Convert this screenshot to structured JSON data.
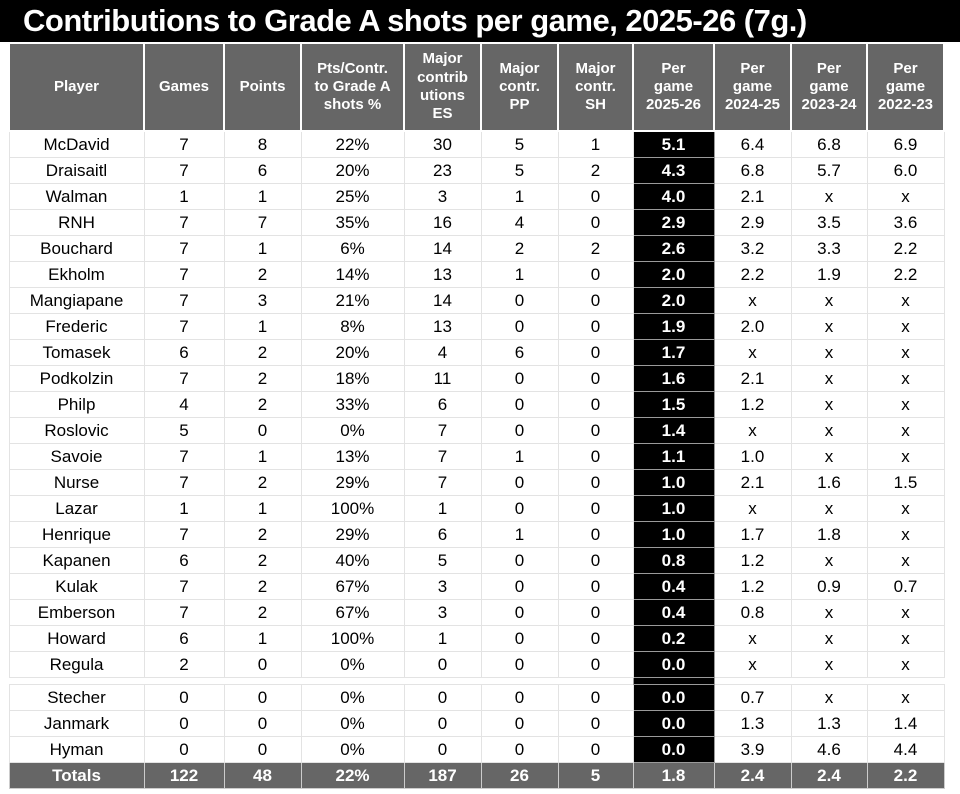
{
  "title": "Contributions to Grade A shots per game, 2025-26 (7g.)",
  "chart_data": {
    "type": "table",
    "title": "Contributions to Grade A shots per game, 2025-26 (7g.)",
    "highlight_col_index": 7,
    "highlight_column": "Per game 2025-26",
    "spacer_after_player": "Regula",
    "columns": [
      {
        "label": "Player",
        "lines": [
          "Player"
        ]
      },
      {
        "label": "Games",
        "lines": [
          "Games"
        ]
      },
      {
        "label": "Points",
        "lines": [
          "Points"
        ]
      },
      {
        "label": "Pts/Contr. to Grade A shots %",
        "lines": [
          "Pts/Contr.",
          "to Grade A",
          "shots %"
        ]
      },
      {
        "label": "Major contributions ES",
        "lines": [
          "Major",
          "contrib",
          "utions",
          "ES"
        ]
      },
      {
        "label": "Major contr. PP",
        "lines": [
          "Major",
          "contr.",
          "PP"
        ]
      },
      {
        "label": "Major contr. SH",
        "lines": [
          "Major",
          "contr.",
          "SH"
        ]
      },
      {
        "label": "Per game 2025-26",
        "lines": [
          "Per",
          "game",
          "2025-26"
        ]
      },
      {
        "label": "Per game 2024-25",
        "lines": [
          "Per",
          "game",
          "2024-25"
        ]
      },
      {
        "label": "Per game 2023-24",
        "lines": [
          "Per",
          "game",
          "2023-24"
        ]
      },
      {
        "label": "Per game 2022-23",
        "lines": [
          "Per",
          "game",
          "2022-23"
        ]
      }
    ],
    "rows": [
      [
        "McDavid",
        "7",
        "8",
        "22%",
        "30",
        "5",
        "1",
        "5.1",
        "6.4",
        "6.8",
        "6.9"
      ],
      [
        "Draisaitl",
        "7",
        "6",
        "20%",
        "23",
        "5",
        "2",
        "4.3",
        "6.8",
        "5.7",
        "6.0"
      ],
      [
        "Walman",
        "1",
        "1",
        "25%",
        "3",
        "1",
        "0",
        "4.0",
        "2.1",
        "x",
        "x"
      ],
      [
        "RNH",
        "7",
        "7",
        "35%",
        "16",
        "4",
        "0",
        "2.9",
        "2.9",
        "3.5",
        "3.6"
      ],
      [
        "Bouchard",
        "7",
        "1",
        "6%",
        "14",
        "2",
        "2",
        "2.6",
        "3.2",
        "3.3",
        "2.2"
      ],
      [
        "Ekholm",
        "7",
        "2",
        "14%",
        "13",
        "1",
        "0",
        "2.0",
        "2.2",
        "1.9",
        "2.2"
      ],
      [
        "Mangiapane",
        "7",
        "3",
        "21%",
        "14",
        "0",
        "0",
        "2.0",
        "x",
        "x",
        "x"
      ],
      [
        "Frederic",
        "7",
        "1",
        "8%",
        "13",
        "0",
        "0",
        "1.9",
        "2.0",
        "x",
        "x"
      ],
      [
        "Tomasek",
        "6",
        "2",
        "20%",
        "4",
        "6",
        "0",
        "1.7",
        "x",
        "x",
        "x"
      ],
      [
        "Podkolzin",
        "7",
        "2",
        "18%",
        "11",
        "0",
        "0",
        "1.6",
        "2.1",
        "x",
        "x"
      ],
      [
        "Philp",
        "4",
        "2",
        "33%",
        "6",
        "0",
        "0",
        "1.5",
        "1.2",
        "x",
        "x"
      ],
      [
        "Roslovic",
        "5",
        "0",
        "0%",
        "7",
        "0",
        "0",
        "1.4",
        "x",
        "x",
        "x"
      ],
      [
        "Savoie",
        "7",
        "1",
        "13%",
        "7",
        "1",
        "0",
        "1.1",
        "1.0",
        "x",
        "x"
      ],
      [
        "Nurse",
        "7",
        "2",
        "29%",
        "7",
        "0",
        "0",
        "1.0",
        "2.1",
        "1.6",
        "1.5"
      ],
      [
        "Lazar",
        "1",
        "1",
        "100%",
        "1",
        "0",
        "0",
        "1.0",
        "x",
        "x",
        "x"
      ],
      [
        "Henrique",
        "7",
        "2",
        "29%",
        "6",
        "1",
        "0",
        "1.0",
        "1.7",
        "1.8",
        "x"
      ],
      [
        "Kapanen",
        "6",
        "2",
        "40%",
        "5",
        "0",
        "0",
        "0.8",
        "1.2",
        "x",
        "x"
      ],
      [
        "Kulak",
        "7",
        "2",
        "67%",
        "3",
        "0",
        "0",
        "0.4",
        "1.2",
        "0.9",
        "0.7"
      ],
      [
        "Emberson",
        "7",
        "2",
        "67%",
        "3",
        "0",
        "0",
        "0.4",
        "0.8",
        "x",
        "x"
      ],
      [
        "Howard",
        "6",
        "1",
        "100%",
        "1",
        "0",
        "0",
        "0.2",
        "x",
        "x",
        "x"
      ],
      [
        "Regula",
        "2",
        "0",
        "0%",
        "0",
        "0",
        "0",
        "0.0",
        "x",
        "x",
        "x"
      ],
      [
        "Stecher",
        "0",
        "0",
        "0%",
        "0",
        "0",
        "0",
        "0.0",
        "0.7",
        "x",
        "x"
      ],
      [
        "Janmark",
        "0",
        "0",
        "0%",
        "0",
        "0",
        "0",
        "0.0",
        "1.3",
        "1.3",
        "1.4"
      ],
      [
        "Hyman",
        "0",
        "0",
        "0%",
        "0",
        "0",
        "0",
        "0.0",
        "3.9",
        "4.6",
        "4.4"
      ]
    ],
    "totals": [
      "Totals",
      "122",
      "48",
      "22%",
      "187",
      "26",
      "5",
      "1.8",
      "2.4",
      "2.4",
      "2.2"
    ],
    "colors": {
      "title_bg": "#000000",
      "title_text": "#ffffff",
      "header_bg": "#666666",
      "header_text": "#ffffff",
      "highlight_bg": "#000000",
      "highlight_text": "#ffffff",
      "totals_bg": "#666666",
      "totals_text": "#ffffff",
      "body_bg": "#ffffff",
      "body_text": "#000000",
      "grid_line": "#e3e3e3"
    }
  }
}
